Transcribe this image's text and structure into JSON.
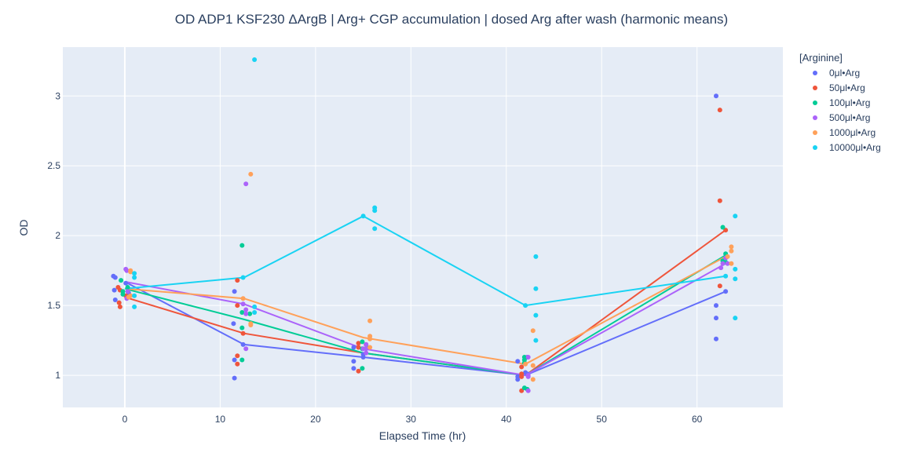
{
  "chart_data": {
    "type": "scatter",
    "title": "OD ADP1 KSF230 ΔArgB | Arg+ CGP accumulation | dosed Arg after wash  (harmonic means)",
    "xlabel": "Elapsed Time (hr)",
    "ylabel": "OD",
    "xlim": [
      -6.5,
      69
    ],
    "ylim": [
      0.77,
      3.35
    ],
    "xticks": [
      0,
      10,
      20,
      30,
      40,
      50,
      60
    ],
    "yticks": [
      1,
      1.5,
      2,
      2.5,
      3
    ],
    "ytick_labels": [
      "1",
      "1.5",
      "2",
      "2.5",
      "3"
    ],
    "grid": true,
    "legend_position": "top-right",
    "legend_title": "[Arginine]",
    "series": [
      {
        "name": "0μl•Arg",
        "color": "#636efa",
        "line": {
          "x": [
            0,
            12.5,
            25,
            42,
            63
          ],
          "y": [
            1.67,
            1.22,
            1.13,
            1.0,
            1.6
          ]
        },
        "points": [
          [
            -1.2,
            1.71
          ],
          [
            -1.0,
            1.7
          ],
          [
            -1.1,
            1.61
          ],
          [
            -1.0,
            1.54
          ],
          [
            0.1,
            1.66
          ],
          [
            0.4,
            1.59
          ],
          [
            11.5,
            1.6
          ],
          [
            11.4,
            1.37
          ],
          [
            11.5,
            1.11
          ],
          [
            11.5,
            0.98
          ],
          [
            12.4,
            1.22
          ],
          [
            24.0,
            1.2
          ],
          [
            24.0,
            1.1
          ],
          [
            24.0,
            1.05
          ],
          [
            25.0,
            1.15
          ],
          [
            25.0,
            1.13
          ],
          [
            41.2,
            1.1
          ],
          [
            41.2,
            0.99
          ],
          [
            41.2,
            0.97
          ],
          [
            42.0,
            1.02
          ],
          [
            42.2,
            1.13
          ],
          [
            42.2,
            1.01
          ],
          [
            62.0,
            3.0
          ],
          [
            62.0,
            1.5
          ],
          [
            62.0,
            1.41
          ],
          [
            62.0,
            1.26
          ],
          [
            63.0,
            1.81
          ],
          [
            63.0,
            1.6
          ]
        ]
      },
      {
        "name": "50μl•Arg",
        "color": "#ef553b",
        "line": {
          "x": [
            0,
            12.5,
            25,
            42,
            63
          ],
          "y": [
            1.56,
            1.3,
            1.16,
            1.0,
            2.04
          ]
        },
        "points": [
          [
            -0.7,
            1.63
          ],
          [
            -0.5,
            1.61
          ],
          [
            -0.6,
            1.52
          ],
          [
            -0.5,
            1.49
          ],
          [
            0.1,
            1.57
          ],
          [
            11.8,
            1.68
          ],
          [
            11.8,
            1.5
          ],
          [
            11.8,
            1.14
          ],
          [
            11.8,
            1.08
          ],
          [
            12.4,
            1.3
          ],
          [
            24.5,
            1.23
          ],
          [
            24.5,
            1.2
          ],
          [
            24.5,
            1.03
          ],
          [
            25.3,
            1.22
          ],
          [
            41.6,
            1.06
          ],
          [
            41.6,
            1.01
          ],
          [
            41.6,
            0.99
          ],
          [
            41.6,
            0.89
          ],
          [
            62.4,
            2.9
          ],
          [
            62.4,
            2.25
          ],
          [
            62.4,
            1.64
          ],
          [
            63.0,
            2.04
          ]
        ]
      },
      {
        "name": "100μl•Arg",
        "color": "#00cc96",
        "line": {
          "x": [
            0,
            12.5,
            25,
            42,
            63
          ],
          "y": [
            1.62,
            1.4,
            1.16,
            1.0,
            1.86
          ]
        },
        "points": [
          [
            -0.4,
            1.68
          ],
          [
            -0.2,
            1.6
          ],
          [
            0.3,
            1.63
          ],
          [
            -0.2,
            1.58
          ],
          [
            12.3,
            1.93
          ],
          [
            12.3,
            1.45
          ],
          [
            12.3,
            1.34
          ],
          [
            12.3,
            1.11
          ],
          [
            13.1,
            1.44
          ],
          [
            24.9,
            1.24
          ],
          [
            24.9,
            1.19
          ],
          [
            24.9,
            1.05
          ],
          [
            25.4,
            1.2
          ],
          [
            41.9,
            1.13
          ],
          [
            41.9,
            1.11
          ],
          [
            41.9,
            1.09
          ],
          [
            41.9,
            0.91
          ],
          [
            42.2,
            0.9
          ],
          [
            62.7,
            2.06
          ],
          [
            62.7,
            1.82
          ],
          [
            63.0,
            1.87
          ],
          [
            63.0,
            1.81
          ]
        ]
      },
      {
        "name": "500μl•Arg",
        "color": "#ab63fa",
        "line": {
          "x": [
            0,
            12.5,
            25,
            42,
            63
          ],
          "y": [
            1.67,
            1.51,
            1.19,
            1.0,
            1.8
          ]
        },
        "points": [
          [
            0.1,
            1.76
          ],
          [
            0.2,
            1.75
          ],
          [
            0.3,
            1.6
          ],
          [
            0.2,
            1.55
          ],
          [
            12.7,
            2.37
          ],
          [
            12.7,
            1.47
          ],
          [
            12.7,
            1.44
          ],
          [
            12.7,
            1.19
          ],
          [
            12.4,
            1.51
          ],
          [
            25.3,
            1.22
          ],
          [
            25.3,
            1.19
          ],
          [
            25.3,
            1.16
          ],
          [
            25.0,
            1.19
          ],
          [
            42.3,
            1.13
          ],
          [
            42.3,
            1.0
          ],
          [
            42.3,
            0.99
          ],
          [
            42.3,
            0.89
          ],
          [
            62.5,
            1.77
          ],
          [
            62.7,
            1.8
          ],
          [
            63.0,
            1.84
          ],
          [
            63.2,
            1.8
          ]
        ]
      },
      {
        "name": "1000μl•Arg",
        "color": "#ffa15a",
        "line": {
          "x": [
            0,
            12.5,
            25,
            42,
            63
          ],
          "y": [
            1.62,
            1.55,
            1.27,
            1.08,
            1.85
          ]
        },
        "points": [
          [
            0.6,
            1.75
          ],
          [
            0.6,
            1.74
          ],
          [
            0.6,
            1.57
          ],
          [
            0.4,
            1.56
          ],
          [
            13.2,
            2.44
          ],
          [
            13.2,
            1.37
          ],
          [
            13.2,
            1.36
          ],
          [
            12.4,
            1.55
          ],
          [
            25.7,
            1.39
          ],
          [
            25.7,
            1.28
          ],
          [
            25.7,
            1.26
          ],
          [
            25.7,
            1.2
          ],
          [
            42.8,
            1.32
          ],
          [
            42.8,
            1.07
          ],
          [
            42.8,
            0.97
          ],
          [
            42.0,
            1.08
          ],
          [
            63.6,
            1.92
          ],
          [
            63.6,
            1.89
          ],
          [
            63.6,
            1.8
          ],
          [
            63.2,
            1.85
          ]
        ]
      },
      {
        "name": "10000μl•Arg",
        "color": "#19d3f3",
        "line": {
          "x": [
            0,
            12.5,
            25,
            42,
            63
          ],
          "y": [
            1.62,
            1.7,
            2.14,
            1.5,
            1.71
          ]
        },
        "points": [
          [
            1.0,
            1.73
          ],
          [
            1.0,
            1.7
          ],
          [
            1.0,
            1.57
          ],
          [
            1.0,
            1.49
          ],
          [
            13.6,
            3.26
          ],
          [
            13.6,
            1.49
          ],
          [
            13.6,
            1.45
          ],
          [
            12.4,
            1.7
          ],
          [
            26.2,
            2.2
          ],
          [
            26.2,
            2.18
          ],
          [
            26.2,
            2.05
          ],
          [
            25.0,
            2.14
          ],
          [
            43.1,
            1.85
          ],
          [
            43.1,
            1.62
          ],
          [
            43.1,
            1.43
          ],
          [
            43.1,
            1.25
          ],
          [
            42.0,
            1.5
          ],
          [
            64.0,
            2.14
          ],
          [
            64.0,
            1.76
          ],
          [
            64.0,
            1.69
          ],
          [
            64.0,
            1.41
          ],
          [
            63.0,
            1.71
          ]
        ]
      }
    ]
  }
}
